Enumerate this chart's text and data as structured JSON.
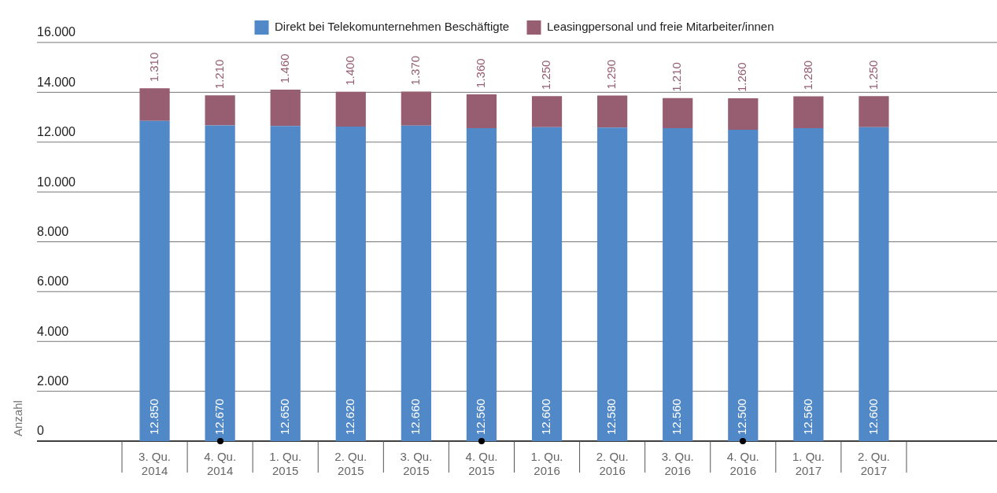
{
  "chart_data": {
    "type": "bar",
    "stacked": true,
    "ylabel": "Anzahl",
    "categories": [
      "3. Qu. 2014",
      "4. Qu. 2014",
      "1. Qu. 2015",
      "2. Qu. 2015",
      "3. Qu. 2015",
      "4. Qu. 2015",
      "1. Qu. 2016",
      "2. Qu. 2016",
      "3. Qu. 2016",
      "4. Qu. 2016",
      "1. Qu. 2017",
      "2. Qu. 2017"
    ],
    "series": [
      {
        "name": "Direkt bei Telekomunternehmen Beschäftigte",
        "color": "#5088c8",
        "values": [
          12850,
          12670,
          12650,
          12620,
          12660,
          12560,
          12600,
          12580,
          12560,
          12500,
          12560,
          12600
        ],
        "value_labels": [
          "12.850",
          "12.670",
          "12.650",
          "12.620",
          "12.660",
          "12.560",
          "12.600",
          "12.580",
          "12.560",
          "12.500",
          "12.560",
          "12.600"
        ]
      },
      {
        "name": "Leasingpersonal und freie Mitarbeiter/innen",
        "color": "#965e70",
        "values": [
          1310,
          1210,
          1460,
          1400,
          1370,
          1360,
          1250,
          1290,
          1210,
          1260,
          1280,
          1250
        ],
        "value_labels": [
          "1.310",
          "1.210",
          "1.460",
          "1.400",
          "1.370",
          "1.360",
          "1.250",
          "1.290",
          "1.210",
          "1.260",
          "1.280",
          "1.250"
        ]
      }
    ],
    "ylim": [
      0,
      16000
    ],
    "yticks": [
      {
        "value": 0,
        "label": "0"
      },
      {
        "value": 2000,
        "label": "2.000"
      },
      {
        "value": 4000,
        "label": "4.000"
      },
      {
        "value": 6000,
        "label": "6.000"
      },
      {
        "value": 8000,
        "label": "8.000"
      },
      {
        "value": 10000,
        "label": "10.000"
      },
      {
        "value": 12000,
        "label": "12.000"
      },
      {
        "value": 14000,
        "label": "14.000"
      },
      {
        "value": 16000,
        "label": "16.000"
      }
    ],
    "grid": "y",
    "legend": "top"
  }
}
